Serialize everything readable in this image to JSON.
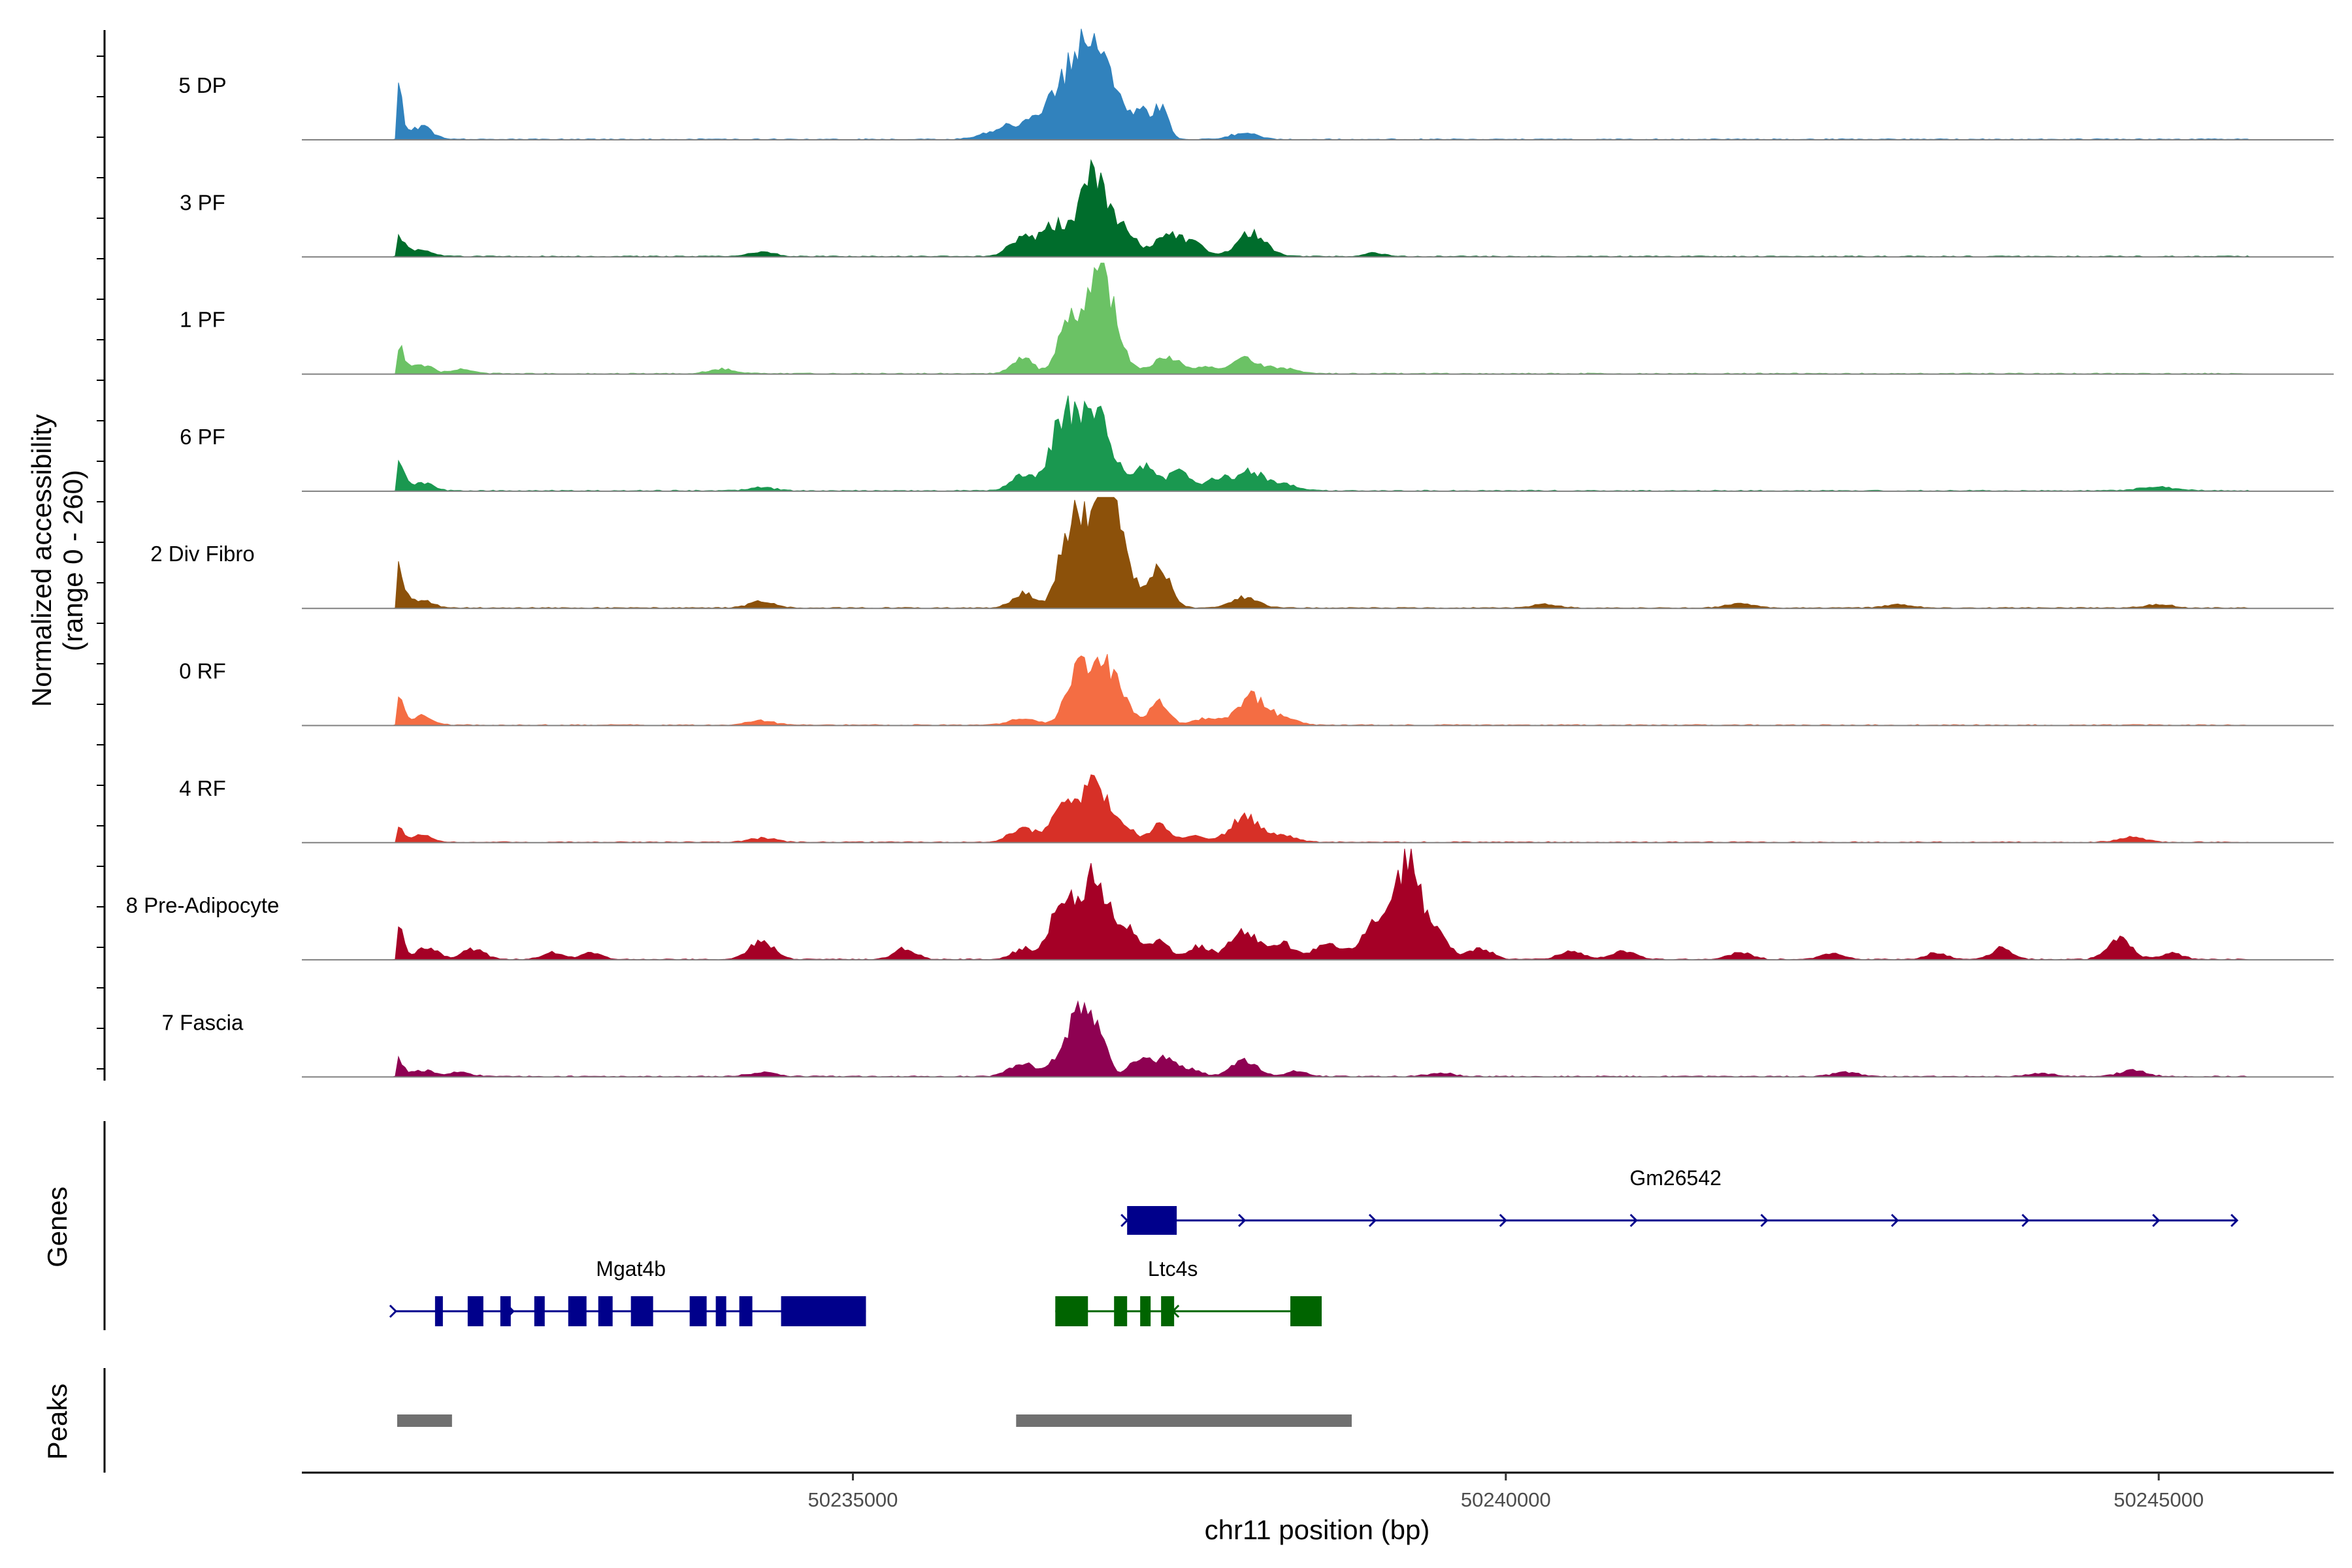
{
  "chart_data": {
    "type": "area",
    "title": "",
    "ylabel_line1": "Normalized accessibility",
    "ylabel_line2": "(range 0 - 260)",
    "ylim": [
      0,
      260
    ],
    "xlabel": "chr11 position (bp)",
    "xlim": [
      50230780,
      50246340
    ],
    "x_ticks": [
      50235000,
      50240000,
      50245000
    ],
    "x_tick_labels": [
      "50235000",
      "50240000",
      "50245000"
    ],
    "tracks": [
      {
        "name": "5 DP",
        "color": "#3182BD",
        "peaks": [
          [
            50231500,
            150,
            40
          ],
          [
            50231700,
            30,
            80
          ],
          [
            50236200,
            30,
            150
          ],
          [
            50236600,
            110,
            150
          ],
          [
            50236800,
            200,
            100
          ],
          [
            50237000,
            120,
            70
          ],
          [
            50237200,
            70,
            60
          ],
          [
            50237350,
            75,
            60
          ],
          [
            50238000,
            15,
            100
          ]
        ]
      },
      {
        "name": "3 PF",
        "color": "#006D2C",
        "peaks": [
          [
            50231500,
            45,
            60
          ],
          [
            50231700,
            15,
            80
          ],
          [
            50236300,
            40,
            100
          ],
          [
            50236550,
            70,
            100
          ],
          [
            50236850,
            190,
            110
          ],
          [
            50237100,
            50,
            80
          ],
          [
            50237400,
            55,
            90
          ],
          [
            50237600,
            30,
            90
          ],
          [
            50238050,
            55,
            110
          ],
          [
            50234300,
            10,
            100
          ],
          [
            50239000,
            8,
            80
          ]
        ]
      },
      {
        "name": "1 PF",
        "color": "#6BC265",
        "peaks": [
          [
            50231500,
            75,
            50
          ],
          [
            50231700,
            20,
            80
          ],
          [
            50232000,
            10,
            80
          ],
          [
            50234000,
            10,
            100
          ],
          [
            50236300,
            35,
            80
          ],
          [
            50236650,
            110,
            80
          ],
          [
            50236900,
            230,
            110
          ],
          [
            50237400,
            40,
            100
          ],
          [
            50237700,
            15,
            80
          ],
          [
            50238000,
            35,
            110
          ],
          [
            50238300,
            12,
            100
          ]
        ]
      },
      {
        "name": "6 PF",
        "color": "#1A9850",
        "peaks": [
          [
            50231500,
            75,
            50
          ],
          [
            50231700,
            20,
            80
          ],
          [
            50234300,
            8,
            100
          ],
          [
            50236300,
            35,
            90
          ],
          [
            50236600,
            150,
            90
          ],
          [
            50236850,
            180,
            130
          ],
          [
            50237250,
            60,
            80
          ],
          [
            50237500,
            45,
            80
          ],
          [
            50237800,
            30,
            90
          ],
          [
            50238050,
            45,
            100
          ],
          [
            50238300,
            15,
            100
          ],
          [
            50245000,
            8,
            150
          ]
        ]
      },
      {
        "name": "2 Div Fibro",
        "color": "#8C510A",
        "peaks": [
          [
            50231500,
            120,
            50
          ],
          [
            50231700,
            20,
            80
          ],
          [
            50234300,
            15,
            100
          ],
          [
            50236300,
            35,
            80
          ],
          [
            50236650,
            130,
            80
          ],
          [
            50236900,
            250,
            150
          ],
          [
            50237000,
            50,
            80
          ],
          [
            50237350,
            90,
            80
          ],
          [
            50238000,
            25,
            100
          ],
          [
            50240300,
            8,
            100
          ],
          [
            50241800,
            10,
            100
          ],
          [
            50243000,
            8,
            100
          ],
          [
            50245000,
            8,
            100
          ]
        ]
      },
      {
        "name": "0 RF",
        "color": "#F46D43",
        "peaks": [
          [
            50231500,
            70,
            50
          ],
          [
            50231700,
            20,
            80
          ],
          [
            50234300,
            10,
            100
          ],
          [
            50236300,
            15,
            100
          ],
          [
            50236700,
            100,
            80
          ],
          [
            50236900,
            150,
            110
          ],
          [
            50237100,
            30,
            80
          ],
          [
            50237350,
            55,
            70
          ],
          [
            50237700,
            15,
            90
          ],
          [
            50238050,
            65,
            110
          ],
          [
            50238300,
            15,
            100
          ]
        ]
      },
      {
        "name": "4 RF",
        "color": "#D73027",
        "peaks": [
          [
            50231500,
            45,
            50
          ],
          [
            50231700,
            15,
            80
          ],
          [
            50234300,
            10,
            100
          ],
          [
            50236300,
            30,
            100
          ],
          [
            50236600,
            70,
            90
          ],
          [
            50236850,
            130,
            110
          ],
          [
            50237100,
            25,
            80
          ],
          [
            50237350,
            40,
            70
          ],
          [
            50237600,
            15,
            80
          ],
          [
            50238000,
            60,
            110
          ],
          [
            50238300,
            15,
            100
          ],
          [
            50244800,
            12,
            100
          ]
        ]
      },
      {
        "name": "8 Pre-Adipocyte",
        "color": "#A50026",
        "peaks": [
          [
            50231500,
            90,
            50
          ],
          [
            50231750,
            30,
            80
          ],
          [
            50232100,
            25,
            80
          ],
          [
            50232700,
            15,
            80
          ],
          [
            50233000,
            15,
            80
          ],
          [
            50234300,
            45,
            90
          ],
          [
            50235400,
            25,
            80
          ],
          [
            50236300,
            25,
            80
          ],
          [
            50236600,
            140,
            90
          ],
          [
            50236850,
            200,
            100
          ],
          [
            50237100,
            70,
            80
          ],
          [
            50237350,
            50,
            70
          ],
          [
            50237650,
            30,
            80
          ],
          [
            50238000,
            65,
            110
          ],
          [
            50238300,
            35,
            80
          ],
          [
            50238650,
            40,
            110
          ],
          [
            50239000,
            80,
            90
          ],
          [
            50239250,
            230,
            110
          ],
          [
            50239500,
            40,
            80
          ],
          [
            50239800,
            25,
            90
          ],
          [
            50240500,
            20,
            90
          ],
          [
            50240900,
            20,
            90
          ],
          [
            50241800,
            15,
            90
          ],
          [
            50242500,
            15,
            80
          ],
          [
            50243300,
            15,
            80
          ],
          [
            50243800,
            25,
            80
          ],
          [
            50244700,
            50,
            90
          ],
          [
            50245100,
            15,
            80
          ]
        ]
      },
      {
        "name": "7 Fascia",
        "color": "#8E0152",
        "peaks": [
          [
            50231500,
            40,
            50
          ],
          [
            50231700,
            15,
            80
          ],
          [
            50232000,
            10,
            80
          ],
          [
            50234300,
            10,
            100
          ],
          [
            50236300,
            30,
            100
          ],
          [
            50236700,
            120,
            110
          ],
          [
            50236850,
            100,
            80
          ],
          [
            50237200,
            40,
            80
          ],
          [
            50237400,
            40,
            80
          ],
          [
            50237600,
            15,
            80
          ],
          [
            50238000,
            35,
            100
          ],
          [
            50238400,
            12,
            80
          ],
          [
            50239500,
            8,
            100
          ],
          [
            50242600,
            10,
            100
          ],
          [
            50244100,
            8,
            100
          ],
          [
            50244800,
            15,
            100
          ]
        ]
      }
    ],
    "genes_panel_label": "Genes",
    "peaks_panel_label": "Peaks",
    "genes": [
      {
        "name": "Gm26542",
        "strand": "+",
        "color": "#00008B",
        "start": 50237100,
        "end": 50245600,
        "exons": [
          [
            50237100,
            50237480
          ]
        ],
        "label_pos": 50241300
      },
      {
        "name": "Mgat4b",
        "strand": "+",
        "color": "#00008B",
        "start": 50231500,
        "end": 50235100,
        "exons": [
          [
            50231800,
            50231860
          ],
          [
            50232050,
            50232170
          ],
          [
            50232300,
            50232380
          ],
          [
            50232560,
            50232640
          ],
          [
            50232820,
            50232960
          ],
          [
            50233050,
            50233160
          ],
          [
            50233300,
            50233470
          ],
          [
            50233750,
            50233880
          ],
          [
            50233950,
            50234030
          ],
          [
            50234130,
            50234230
          ],
          [
            50234450,
            50235100
          ]
        ],
        "label_pos": 50233300
      },
      {
        "name": "Ltc4s",
        "strand": "-",
        "color": "#006400",
        "start": 50236550,
        "end": 50238590,
        "exons": [
          [
            50236550,
            50236800
          ],
          [
            50237000,
            50237100
          ],
          [
            50237200,
            50237280
          ],
          [
            50237360,
            50237460
          ],
          [
            50238350,
            50238590
          ]
        ],
        "label_pos": 50237450
      }
    ],
    "peak_regions": [
      [
        50231510,
        50231930
      ],
      [
        50236250,
        50238820
      ]
    ],
    "peak_color": "#707070"
  }
}
